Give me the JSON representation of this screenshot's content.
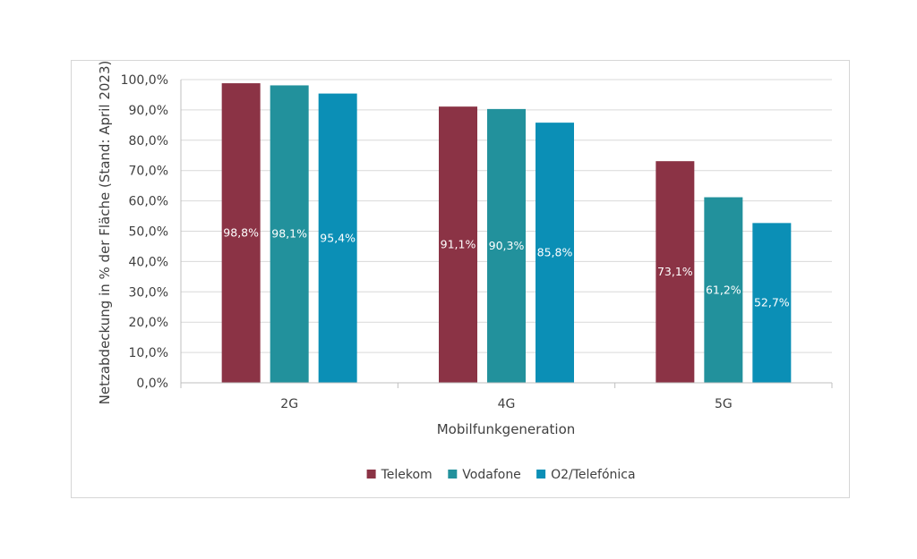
{
  "chart_data": {
    "type": "bar",
    "categories": [
      "2G",
      "4G",
      "5G"
    ],
    "series": [
      {
        "name": "Telekom",
        "color": "#8b3345",
        "values": [
          98.8,
          91.1,
          73.1
        ],
        "labels": [
          "98,8%",
          "91,1%",
          "73,1%"
        ]
      },
      {
        "name": "Vodafone",
        "color": "#22919c",
        "values": [
          98.1,
          90.3,
          61.2
        ],
        "labels": [
          "98,1%",
          "90,3%",
          "61,2%"
        ]
      },
      {
        "name": "O2/Telefónica",
        "color": "#0b8fb6",
        "values": [
          95.4,
          85.8,
          52.7
        ],
        "labels": [
          "95,4%",
          "85,8%",
          "52,7%"
        ]
      }
    ],
    "xlabel": "Mobilfunkgeneration",
    "ylabel": "Netzabdeckung in % der Fläche (Stand: April 2023)",
    "ylim": [
      0,
      100
    ],
    "yticks": [
      0,
      10,
      20,
      30,
      40,
      50,
      60,
      70,
      80,
      90,
      100
    ],
    "ytick_labels": [
      "0,0%",
      "10,0%",
      "20,0%",
      "30,0%",
      "40,0%",
      "50,0%",
      "60,0%",
      "70,0%",
      "80,0%",
      "90,0%",
      "100,0%"
    ],
    "grid": true,
    "legend_position": "bottom"
  }
}
